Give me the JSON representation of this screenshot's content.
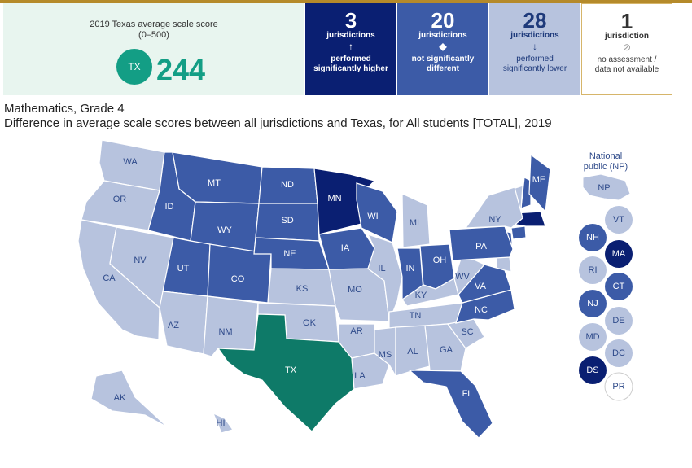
{
  "summary": {
    "title": "2019 Texas average scale score",
    "range": "(0–500)",
    "state_code": "TX",
    "score": "244"
  },
  "stats": {
    "higher": {
      "count": "3",
      "unit": "jurisdictions",
      "symbol": "↑",
      "desc1": "performed",
      "desc2": "significantly higher"
    },
    "same": {
      "count": "20",
      "unit": "jurisdictions",
      "symbol": "◆",
      "desc1": "not significantly",
      "desc2": "different"
    },
    "lower": {
      "count": "28",
      "unit": "jurisdictions",
      "symbol": "↓",
      "desc1": "performed",
      "desc2": "significantly lower"
    },
    "na": {
      "count": "1",
      "unit": "jurisdiction",
      "symbol": "⊘",
      "desc1": "no assessment /",
      "desc2": "data not available"
    }
  },
  "subtitle": "Mathematics, Grade 4",
  "caption": "Difference in average scale scores between all jurisdictions and Texas, for All students [TOTAL], 2019",
  "colors": {
    "higher": "#0a1f72",
    "same": "#3c5ba7",
    "lower": "#b7c3de",
    "focal": "#0e7a68",
    "na": "#ffffff"
  },
  "national_public": {
    "label1": "National",
    "label2": "public (NP)",
    "code": "NP"
  },
  "states": [
    {
      "code": "WA",
      "status": "lower"
    },
    {
      "code": "OR",
      "status": "lower"
    },
    {
      "code": "CA",
      "status": "lower"
    },
    {
      "code": "NV",
      "status": "lower"
    },
    {
      "code": "ID",
      "status": "same"
    },
    {
      "code": "MT",
      "status": "same"
    },
    {
      "code": "WY",
      "status": "same"
    },
    {
      "code": "UT",
      "status": "same"
    },
    {
      "code": "CO",
      "status": "same"
    },
    {
      "code": "AZ",
      "status": "lower"
    },
    {
      "code": "NM",
      "status": "lower"
    },
    {
      "code": "ND",
      "status": "same"
    },
    {
      "code": "SD",
      "status": "same"
    },
    {
      "code": "NE",
      "status": "same"
    },
    {
      "code": "KS",
      "status": "lower"
    },
    {
      "code": "OK",
      "status": "lower"
    },
    {
      "code": "TX",
      "status": "focal"
    },
    {
      "code": "MN",
      "status": "higher"
    },
    {
      "code": "IA",
      "status": "same"
    },
    {
      "code": "MO",
      "status": "lower"
    },
    {
      "code": "AR",
      "status": "lower"
    },
    {
      "code": "LA",
      "status": "lower"
    },
    {
      "code": "WI",
      "status": "same"
    },
    {
      "code": "IL",
      "status": "lower"
    },
    {
      "code": "MI",
      "status": "lower"
    },
    {
      "code": "IN",
      "status": "same"
    },
    {
      "code": "OH",
      "status": "same"
    },
    {
      "code": "KY",
      "status": "lower"
    },
    {
      "code": "TN",
      "status": "lower"
    },
    {
      "code": "MS",
      "status": "lower"
    },
    {
      "code": "AL",
      "status": "lower"
    },
    {
      "code": "GA",
      "status": "lower"
    },
    {
      "code": "FL",
      "status": "same"
    },
    {
      "code": "SC",
      "status": "lower"
    },
    {
      "code": "NC",
      "status": "same"
    },
    {
      "code": "VA",
      "status": "same"
    },
    {
      "code": "WV",
      "status": "lower"
    },
    {
      "code": "PA",
      "status": "same"
    },
    {
      "code": "NY",
      "status": "lower"
    },
    {
      "code": "ME",
      "status": "same"
    },
    {
      "code": "AK",
      "status": "lower"
    },
    {
      "code": "HI",
      "status": "lower"
    }
  ],
  "small_states": [
    {
      "code": "VT",
      "status": "lower"
    },
    {
      "code": "NH",
      "status": "same"
    },
    {
      "code": "MA",
      "status": "higher"
    },
    {
      "code": "RI",
      "status": "lower"
    },
    {
      "code": "CT",
      "status": "same"
    },
    {
      "code": "NJ",
      "status": "same"
    },
    {
      "code": "DE",
      "status": "lower"
    },
    {
      "code": "MD",
      "status": "lower"
    },
    {
      "code": "DC",
      "status": "lower"
    },
    {
      "code": "DS",
      "status": "higher"
    },
    {
      "code": "PR",
      "status": "na"
    }
  ]
}
